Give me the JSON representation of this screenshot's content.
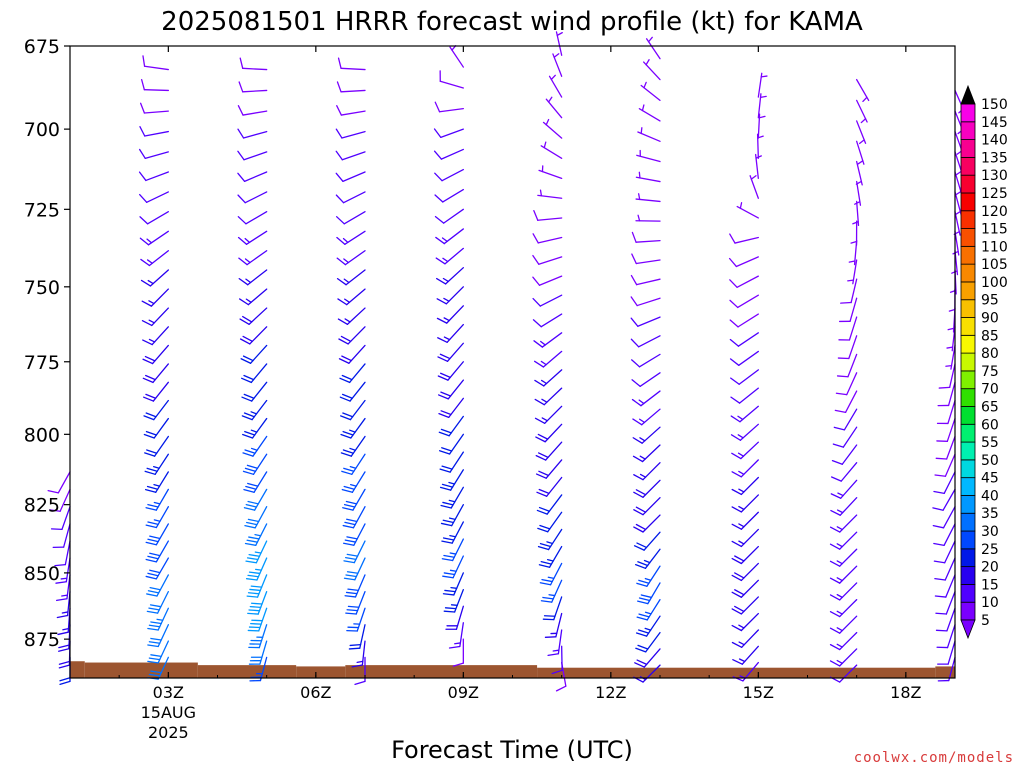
{
  "credit": "coolwx.com/models",
  "chart_data": {
    "type": "wind-barb time-height profile",
    "title": "2025081501 HRRR forecast wind profile (kt) for KAMA",
    "xlabel": "Forecast Time (UTC)",
    "ylabel": "",
    "y_scale": "pressure (hPa), decreasing upward",
    "ylim": [
      890,
      675
    ],
    "y_ticks": [
      675,
      700,
      725,
      750,
      775,
      800,
      825,
      850,
      875
    ],
    "xlim": [
      1,
      19
    ],
    "x_ticks": [
      {
        "hour": 3,
        "label": "03Z",
        "sub1": "15AUG",
        "sub2": "2025"
      },
      {
        "hour": 6,
        "label": "06Z"
      },
      {
        "hour": 9,
        "label": "09Z"
      },
      {
        "hour": 12,
        "label": "12Z"
      },
      {
        "hour": 15,
        "label": "15Z"
      },
      {
        "hour": 18,
        "label": "18Z"
      }
    ],
    "barb_hours": [
      1,
      3,
      5,
      7,
      9,
      11,
      13,
      15,
      17,
      19
    ],
    "level_step_hpa": 6.25,
    "columns": [
      {
        "hour": 1,
        "profile": [
          [
            882,
            180,
            20
          ],
          [
            860,
            185,
            16
          ],
          [
            840,
            190,
            12
          ],
          [
            825,
            200,
            10
          ],
          [
            812,
            210,
            8
          ]
        ]
      },
      {
        "hour": 3,
        "profile": [
          [
            882,
            205,
            30
          ],
          [
            862,
            205,
            33
          ],
          [
            845,
            210,
            30
          ],
          [
            820,
            210,
            26
          ],
          [
            800,
            215,
            22
          ],
          [
            775,
            220,
            18
          ],
          [
            750,
            225,
            16
          ],
          [
            725,
            240,
            12
          ],
          [
            700,
            260,
            10
          ],
          [
            680,
            280,
            8
          ]
        ]
      },
      {
        "hour": 5,
        "profile": [
          [
            882,
            195,
            27
          ],
          [
            860,
            200,
            40
          ],
          [
            840,
            205,
            36
          ],
          [
            820,
            210,
            31
          ],
          [
            800,
            215,
            26
          ],
          [
            775,
            220,
            21
          ],
          [
            750,
            230,
            17
          ],
          [
            725,
            240,
            12
          ],
          [
            700,
            255,
            10
          ],
          [
            680,
            275,
            8
          ]
        ]
      },
      {
        "hour": 7,
        "profile": [
          [
            882,
            180,
            12
          ],
          [
            862,
            200,
            28
          ],
          [
            845,
            205,
            31
          ],
          [
            820,
            210,
            28
          ],
          [
            800,
            215,
            24
          ],
          [
            775,
            220,
            20
          ],
          [
            750,
            230,
            16
          ],
          [
            725,
            240,
            12
          ],
          [
            700,
            255,
            10
          ],
          [
            680,
            275,
            8
          ]
        ]
      },
      {
        "hour": 9,
        "profile": [
          [
            875,
            180,
            8
          ],
          [
            860,
            200,
            22
          ],
          [
            845,
            205,
            26
          ],
          [
            820,
            210,
            24
          ],
          [
            800,
            215,
            21
          ],
          [
            775,
            220,
            18
          ],
          [
            750,
            225,
            16
          ],
          [
            725,
            235,
            12
          ],
          [
            700,
            250,
            10
          ],
          [
            690,
            270,
            8
          ],
          [
            676,
            0,
            6
          ]
        ]
      },
      {
        "hour": 11,
        "profile": [
          [
            884,
            170,
            8
          ],
          [
            870,
            190,
            14
          ],
          [
            852,
            205,
            26
          ],
          [
            830,
            215,
            22
          ],
          [
            810,
            220,
            19
          ],
          [
            790,
            225,
            17
          ],
          [
            770,
            230,
            14
          ],
          [
            750,
            245,
            10
          ],
          [
            730,
            260,
            8
          ],
          [
            710,
            300,
            6
          ],
          [
            690,
            330,
            6
          ],
          [
            676,
            350,
            5
          ]
        ]
      },
      {
        "hour": 13,
        "profile": [
          [
            885,
            225,
            16
          ],
          [
            870,
            215,
            23
          ],
          [
            852,
            210,
            28
          ],
          [
            830,
            225,
            19
          ],
          [
            810,
            225,
            17
          ],
          [
            790,
            230,
            14
          ],
          [
            770,
            240,
            11
          ],
          [
            750,
            255,
            9
          ],
          [
            730,
            270,
            7
          ],
          [
            710,
            285,
            6
          ],
          [
            690,
            310,
            6
          ],
          [
            676,
            330,
            5
          ]
        ]
      },
      {
        "hour": 15,
        "profile": [
          [
            884,
            220,
            14
          ],
          [
            868,
            225,
            17
          ],
          [
            850,
            225,
            18
          ],
          [
            830,
            225,
            17
          ],
          [
            810,
            225,
            15
          ],
          [
            790,
            230,
            13
          ],
          [
            770,
            235,
            11
          ],
          [
            750,
            240,
            9
          ],
          [
            735,
            250,
            8
          ],
          [
            720,
            350,
            6
          ],
          [
            700,
            5,
            6
          ],
          [
            685,
            10,
            5
          ]
        ]
      },
      {
        "hour": 17,
        "profile": [
          [
            885,
            225,
            12
          ],
          [
            868,
            225,
            14
          ],
          [
            850,
            225,
            15
          ],
          [
            830,
            225,
            14
          ],
          [
            810,
            220,
            12
          ],
          [
            790,
            210,
            10
          ],
          [
            770,
            200,
            9
          ],
          [
            750,
            195,
            8
          ],
          [
            735,
            185,
            7
          ],
          [
            715,
            170,
            6
          ],
          [
            700,
            160,
            6
          ],
          [
            685,
            150,
            5
          ]
        ]
      },
      {
        "hour": 19,
        "profile": [
          [
            882,
            195,
            10
          ],
          [
            862,
            200,
            12
          ],
          [
            840,
            205,
            12
          ],
          [
            820,
            210,
            11
          ],
          [
            800,
            200,
            9
          ],
          [
            780,
            195,
            8
          ],
          [
            760,
            185,
            7
          ],
          [
            740,
            175,
            6
          ],
          [
            720,
            165,
            6
          ],
          [
            700,
            160,
            5
          ],
          [
            685,
            155,
            5
          ]
        ]
      }
    ],
    "terrain": [
      {
        "x": [
          1.0,
          1.3
        ],
        "p": 883.5
      },
      {
        "x": [
          1.3,
          3.6
        ],
        "p": 884.0
      },
      {
        "x": [
          3.6,
          5.6
        ],
        "p": 885.0
      },
      {
        "x": [
          5.6,
          6.6
        ],
        "p": 885.5
      },
      {
        "x": [
          6.6,
          10.5
        ],
        "p": 885.0
      },
      {
        "x": [
          10.5,
          18.6
        ],
        "p": 886.0
      },
      {
        "x": [
          18.6,
          19.0
        ],
        "p": 885.5
      }
    ],
    "terrain_color": "#9c5530",
    "colorbar": {
      "unit": "kt",
      "bands": [
        {
          "from": 5,
          "to": 10,
          "color": "#7a00ff"
        },
        {
          "from": 10,
          "to": 15,
          "color": "#5000ff"
        },
        {
          "from": 15,
          "to": 20,
          "color": "#2800f0"
        },
        {
          "from": 20,
          "to": 25,
          "color": "#0018e8"
        },
        {
          "from": 25,
          "to": 30,
          "color": "#0048ff"
        },
        {
          "from": 30,
          "to": 35,
          "color": "#0070ff"
        },
        {
          "from": 35,
          "to": 40,
          "color": "#0098ff"
        },
        {
          "from": 40,
          "to": 45,
          "color": "#00b8ff"
        },
        {
          "from": 45,
          "to": 50,
          "color": "#00d8e0"
        },
        {
          "from": 50,
          "to": 55,
          "color": "#00f0b0"
        },
        {
          "from": 55,
          "to": 60,
          "color": "#00f070"
        },
        {
          "from": 60,
          "to": 65,
          "color": "#00e030"
        },
        {
          "from": 65,
          "to": 70,
          "color": "#30e000"
        },
        {
          "from": 70,
          "to": 75,
          "color": "#80f000"
        },
        {
          "from": 75,
          "to": 80,
          "color": "#c8f800"
        },
        {
          "from": 80,
          "to": 85,
          "color": "#f8f800"
        },
        {
          "from": 85,
          "to": 90,
          "color": "#f8e000"
        },
        {
          "from": 90,
          "to": 95,
          "color": "#f8c000"
        },
        {
          "from": 95,
          "to": 100,
          "color": "#f8a000"
        },
        {
          "from": 100,
          "to": 105,
          "color": "#f88800"
        },
        {
          "from": 105,
          "to": 110,
          "color": "#f87000"
        },
        {
          "from": 110,
          "to": 115,
          "color": "#f85000"
        },
        {
          "from": 115,
          "to": 120,
          "color": "#f83000"
        },
        {
          "from": 120,
          "to": 125,
          "color": "#f80000"
        },
        {
          "from": 125,
          "to": 130,
          "color": "#f80030"
        },
        {
          "from": 130,
          "to": 135,
          "color": "#f80060"
        },
        {
          "from": 135,
          "to": 140,
          "color": "#f80090"
        },
        {
          "from": 140,
          "to": 145,
          "color": "#f800c0"
        },
        {
          "from": 145,
          "to": 150,
          "color": "#f800e8"
        }
      ],
      "below_color": "#7a00ff",
      "above_color": "#000000",
      "labels": [
        5,
        10,
        15,
        20,
        25,
        30,
        35,
        40,
        45,
        50,
        55,
        60,
        65,
        70,
        75,
        80,
        85,
        90,
        95,
        100,
        105,
        110,
        115,
        120,
        125,
        130,
        135,
        140,
        145,
        150
      ]
    }
  }
}
